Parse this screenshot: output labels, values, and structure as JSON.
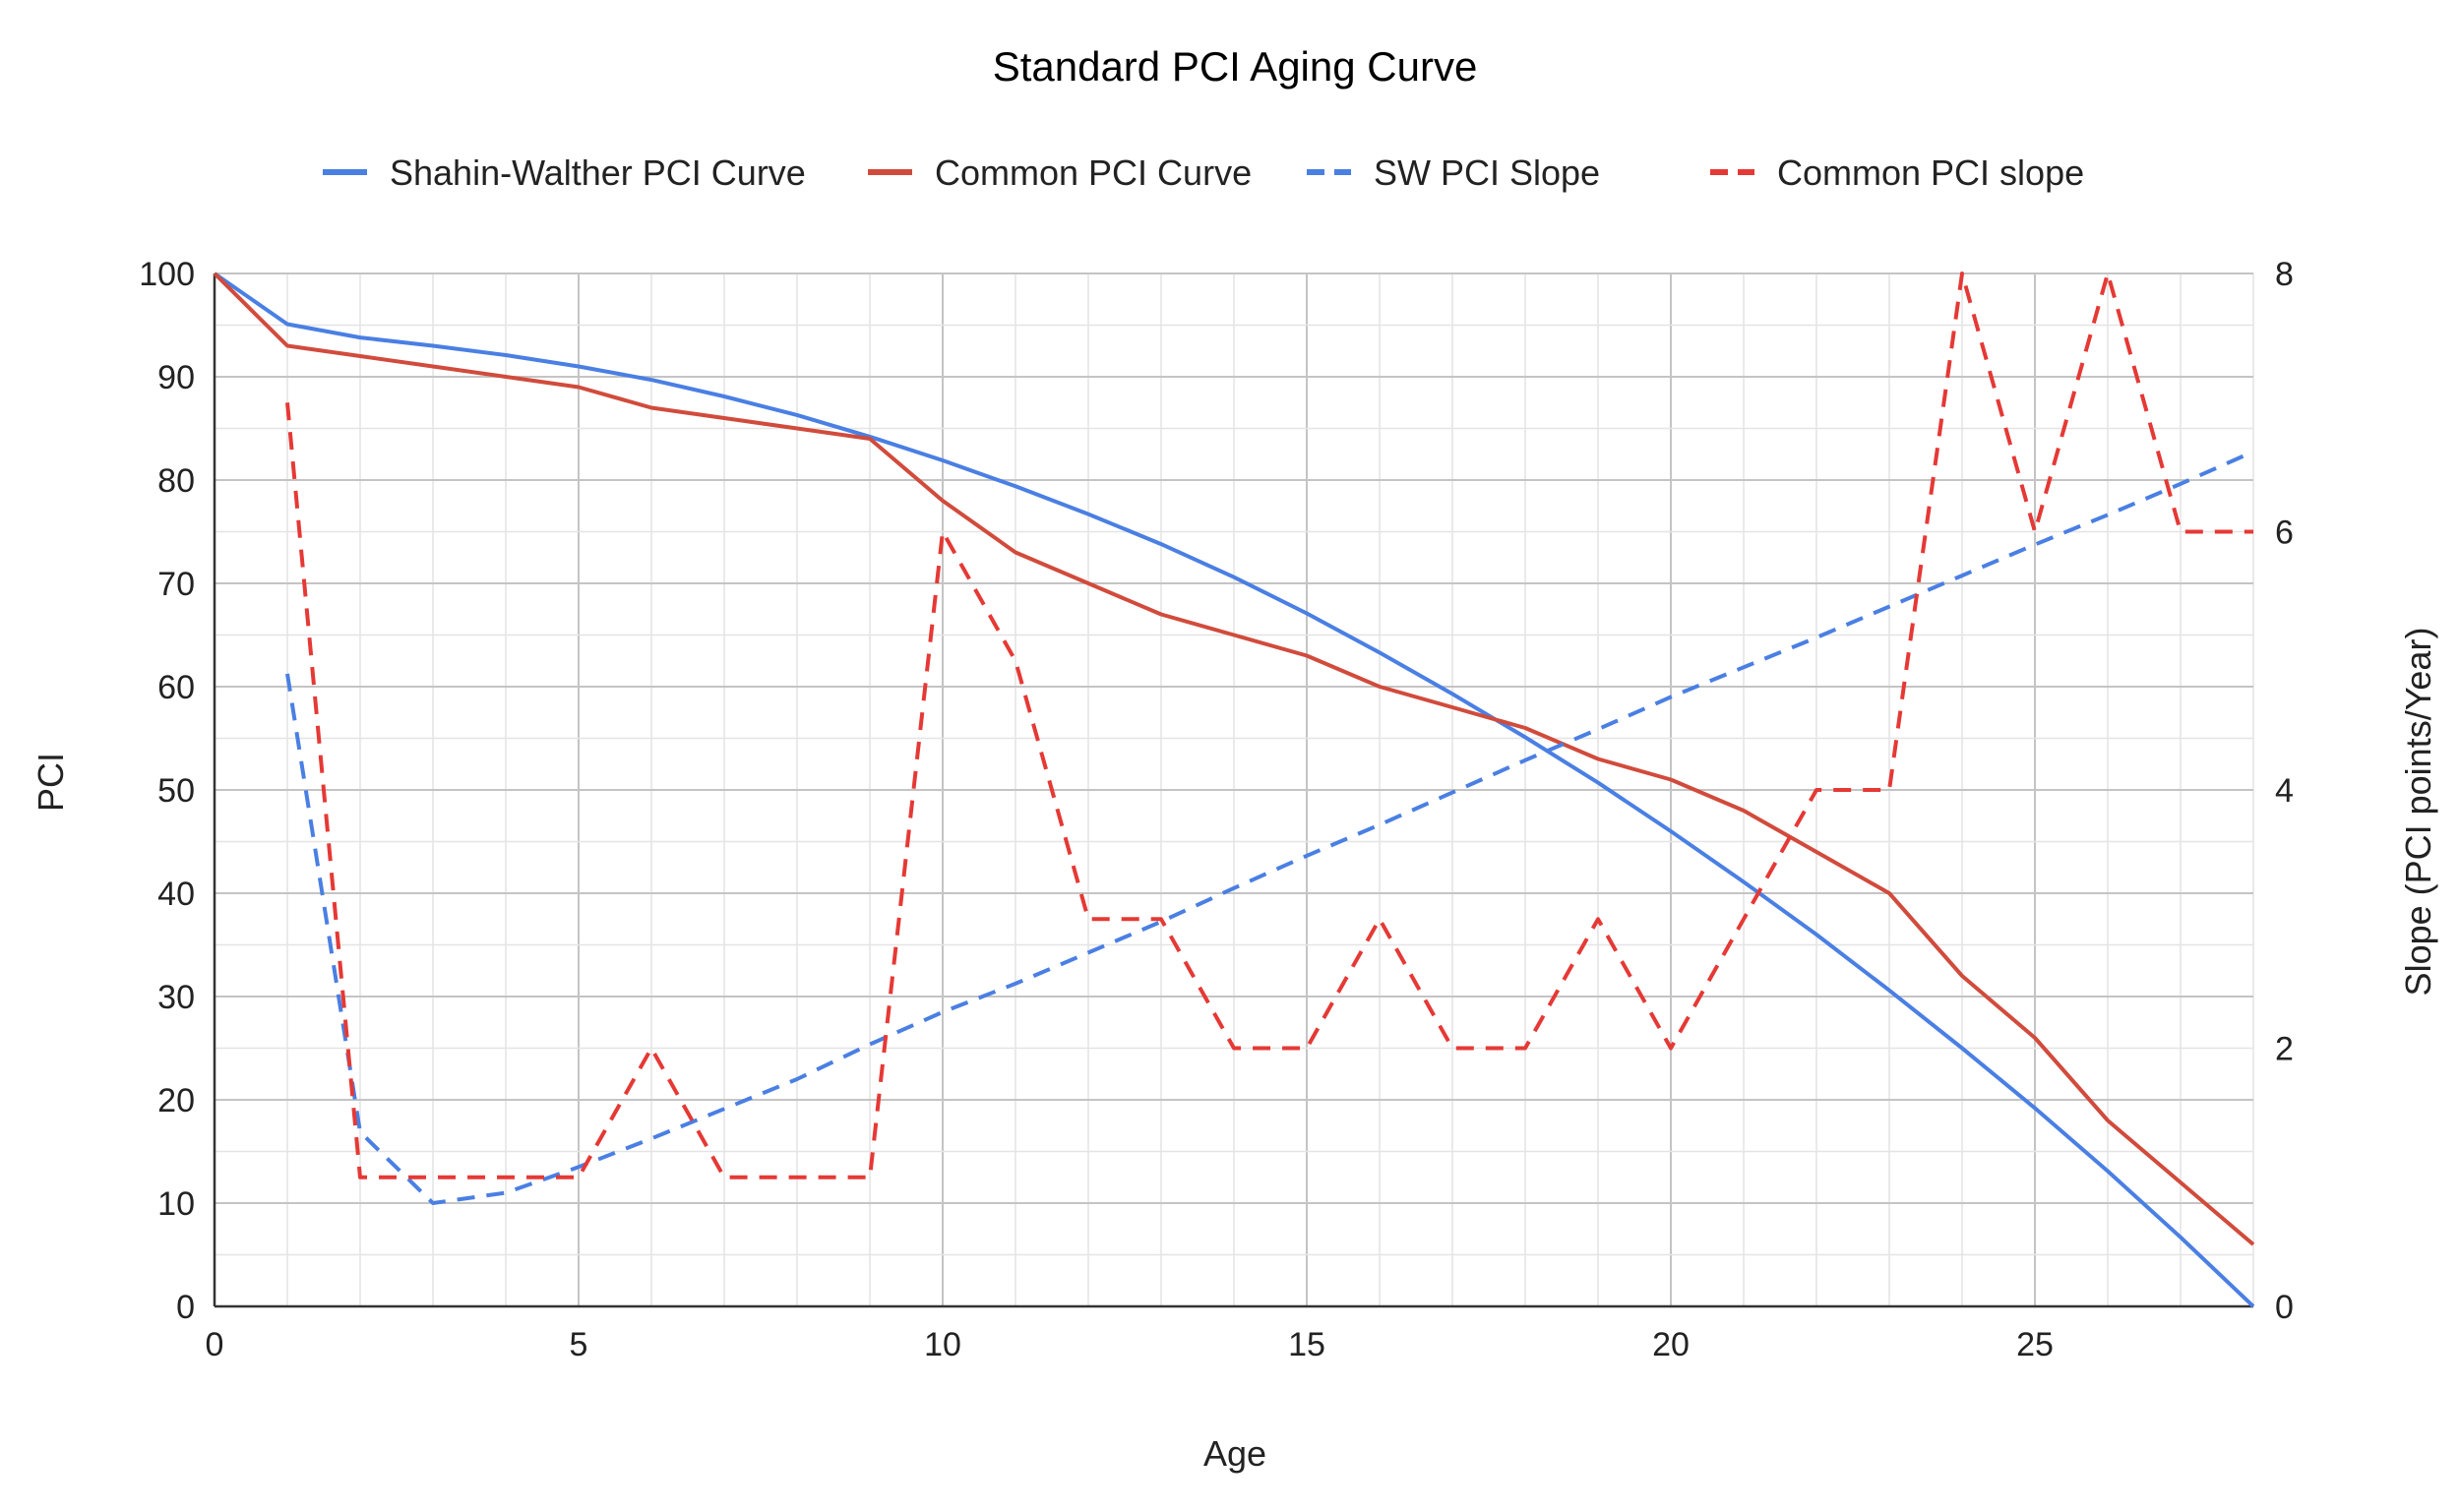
{
  "chart_data": {
    "type": "line",
    "title": "Standard PCI Aging Curve",
    "xlabel": "Age",
    "ylabel": "PCI",
    "y2label": "Slope (PCI points/Year)",
    "xlim": [
      0,
      28
    ],
    "ylim": [
      0,
      100
    ],
    "y2lim": [
      0,
      8
    ],
    "xticks": [
      0,
      5,
      10,
      15,
      20,
      25
    ],
    "yticks": [
      0,
      10,
      20,
      30,
      40,
      50,
      60,
      70,
      80,
      90,
      100
    ],
    "y2ticks": [
      0,
      2,
      4,
      6,
      8
    ],
    "grid": true,
    "legend_position": "top",
    "series": [
      {
        "name": "Shahin-Walther PCI Curve",
        "axis": "left",
        "style": "solid",
        "color": "#4a7fe3",
        "x": [
          0,
          1,
          2,
          3,
          4,
          5,
          6,
          7,
          8,
          9,
          10,
          11,
          12,
          13,
          14,
          15,
          16,
          17,
          18,
          19,
          20,
          21,
          22,
          23,
          24,
          25,
          26,
          27,
          28
        ],
        "values": [
          100,
          95.1,
          93.8,
          93.0,
          92.1,
          91.0,
          89.7,
          88.1,
          86.3,
          84.2,
          81.9,
          79.4,
          76.7,
          73.8,
          70.6,
          67.1,
          63.3,
          59.3,
          55.1,
          50.7,
          46.0,
          41.1,
          36.0,
          30.6,
          25.0,
          19.2,
          13.1,
          6.7,
          0
        ]
      },
      {
        "name": "Common PCI Curve",
        "axis": "left",
        "style": "solid",
        "color": "#d14b3c",
        "x": [
          0,
          1,
          2,
          3,
          4,
          5,
          6,
          7,
          8,
          9,
          10,
          11,
          12,
          13,
          14,
          15,
          16,
          17,
          18,
          19,
          20,
          21,
          22,
          23,
          24,
          25,
          26,
          27,
          28
        ],
        "values": [
          100,
          93,
          92,
          91,
          90,
          89,
          87,
          86,
          85,
          84,
          78,
          73,
          70,
          67,
          65,
          63,
          60,
          58,
          56,
          53,
          51,
          48,
          44,
          40,
          32,
          26,
          18,
          12,
          6
        ]
      },
      {
        "name": "SW PCI Slope",
        "axis": "right",
        "style": "dashed",
        "color": "#4a7fe3",
        "x": [
          1,
          2,
          3,
          4,
          5,
          6,
          7,
          8,
          9,
          10,
          11,
          12,
          13,
          14,
          15,
          16,
          17,
          18,
          19,
          20,
          21,
          22,
          23,
          24,
          25,
          26,
          27,
          28
        ],
        "values": [
          4.9,
          1.35,
          0.8,
          0.88,
          1.08,
          1.3,
          1.53,
          1.76,
          2.03,
          2.28,
          2.5,
          2.74,
          2.98,
          3.24,
          3.49,
          3.73,
          3.98,
          4.23,
          4.47,
          4.72,
          4.95,
          5.18,
          5.42,
          5.66,
          5.9,
          6.13,
          6.37,
          6.62
        ]
      },
      {
        "name": "Common PCI slope",
        "axis": "right",
        "style": "dashed",
        "color": "#e53935",
        "x": [
          1,
          2,
          3,
          4,
          5,
          6,
          7,
          8,
          9,
          10,
          11,
          12,
          13,
          14,
          15,
          16,
          17,
          18,
          19,
          20,
          21,
          22,
          23,
          24,
          25,
          26,
          27,
          28
        ],
        "values": [
          7,
          1,
          1,
          1,
          1,
          2,
          1,
          1,
          1,
          6,
          5,
          3,
          3,
          2,
          2,
          3,
          2,
          2,
          3,
          2,
          3,
          4,
          4,
          8,
          6,
          8,
          6,
          6
        ]
      }
    ]
  }
}
